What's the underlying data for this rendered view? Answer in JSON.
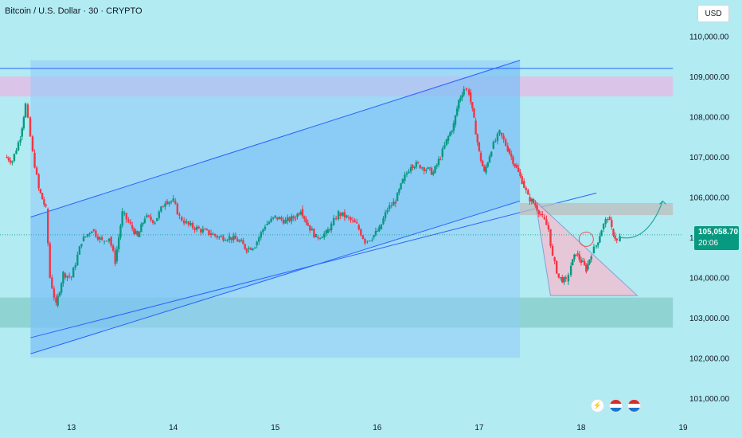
{
  "header": {
    "title": "Bitcoin / U.S. Dollar · 30 · CRYPTO",
    "currency_button": "USD"
  },
  "last_price": {
    "value": "105,058.70",
    "countdown": "20:06",
    "color": "#089981"
  },
  "events": {
    "icons": [
      "lightning-icon",
      "us-flag-icon",
      "us-flag-icon"
    ]
  },
  "chart_data": {
    "type": "candlestick",
    "title": "Bitcoin / U.S. Dollar · 30 · CRYPTO",
    "xlabel": "",
    "ylabel": "",
    "x_ticks": [
      "13",
      "14",
      "15",
      "16",
      "17",
      "18",
      "19"
    ],
    "y_ticks": [
      101000,
      102000,
      103000,
      104000,
      105000,
      106000,
      107000,
      108000,
      109000,
      110000
    ],
    "y_tick_labels": [
      "101,000.00",
      "102,000.00",
      "103,000.00",
      "104,000.00",
      "105,000.00",
      "106,000.00",
      "107,000.00",
      "108,000.00",
      "109,000.00",
      "110,000.00"
    ],
    "xlim": [
      12.3,
      19.0
    ],
    "ylim": [
      100600,
      110900
    ],
    "grid": false,
    "up_color": "#089981",
    "down_color": "#f23645",
    "current_price": 105058.7,
    "close_path": [
      [
        12.35,
        107000
      ],
      [
        12.42,
        106900
      ],
      [
        12.5,
        107500
      ],
      [
        12.55,
        108300
      ],
      [
        12.62,
        107100
      ],
      [
        12.68,
        106200
      ],
      [
        12.75,
        105700
      ],
      [
        12.79,
        104000
      ],
      [
        12.85,
        103300
      ],
      [
        12.92,
        104100
      ],
      [
        13.0,
        104000
      ],
      [
        13.1,
        104900
      ],
      [
        13.2,
        105200
      ],
      [
        13.3,
        104900
      ],
      [
        13.37,
        105000
      ],
      [
        13.43,
        104400
      ],
      [
        13.5,
        105600
      ],
      [
        13.58,
        105300
      ],
      [
        13.65,
        105000
      ],
      [
        13.72,
        105500
      ],
      [
        13.82,
        105400
      ],
      [
        13.92,
        105900
      ],
      [
        14.0,
        105900
      ],
      [
        14.06,
        105500
      ],
      [
        14.15,
        105300
      ],
      [
        14.25,
        105200
      ],
      [
        14.35,
        105100
      ],
      [
        14.45,
        105000
      ],
      [
        14.55,
        105000
      ],
      [
        14.65,
        104900
      ],
      [
        14.72,
        104700
      ],
      [
        14.8,
        104800
      ],
      [
        14.9,
        105300
      ],
      [
        15.0,
        105500
      ],
      [
        15.1,
        105400
      ],
      [
        15.2,
        105500
      ],
      [
        15.25,
        105700
      ],
      [
        15.32,
        105300
      ],
      [
        15.4,
        105000
      ],
      [
        15.5,
        105100
      ],
      [
        15.55,
        105300
      ],
      [
        15.62,
        105600
      ],
      [
        15.7,
        105500
      ],
      [
        15.8,
        105300
      ],
      [
        15.88,
        104900
      ],
      [
        15.95,
        105000
      ],
      [
        16.02,
        105200
      ],
      [
        16.1,
        105700
      ],
      [
        16.18,
        105900
      ],
      [
        16.25,
        106400
      ],
      [
        16.33,
        106800
      ],
      [
        16.4,
        106800
      ],
      [
        16.48,
        106700
      ],
      [
        16.55,
        106600
      ],
      [
        16.62,
        107000
      ],
      [
        16.68,
        107400
      ],
      [
        16.75,
        107800
      ],
      [
        16.8,
        108400
      ],
      [
        16.85,
        108700
      ],
      [
        16.9,
        108600
      ],
      [
        16.95,
        107900
      ],
      [
        17.0,
        107100
      ],
      [
        17.05,
        106600
      ],
      [
        17.12,
        107200
      ],
      [
        17.2,
        107600
      ],
      [
        17.28,
        107200
      ],
      [
        17.35,
        106800
      ],
      [
        17.42,
        106400
      ],
      [
        17.48,
        106000
      ],
      [
        17.55,
        105800
      ],
      [
        17.62,
        105500
      ],
      [
        17.68,
        105200
      ],
      [
        17.72,
        104500
      ],
      [
        17.78,
        104000
      ],
      [
        17.85,
        103900
      ],
      [
        17.9,
        104300
      ],
      [
        17.95,
        104600
      ],
      [
        18.0,
        104400
      ],
      [
        18.05,
        104200
      ],
      [
        18.1,
        104600
      ],
      [
        18.15,
        104800
      ],
      [
        18.2,
        105200
      ],
      [
        18.26,
        105500
      ],
      [
        18.3,
        105200
      ],
      [
        18.35,
        104900
      ],
      [
        18.38,
        105000
      ]
    ],
    "annotations": {
      "resistance_line": 109200,
      "resistance_zone": [
        108500,
        109000
      ],
      "support_zone": [
        102750,
        103500
      ],
      "rectangle": {
        "x": [
          12.3,
          17.4
        ],
        "y": [
          102000,
          109400
        ]
      },
      "ascending_channel_upper": [
        [
          12.3,
          105500
        ],
        [
          17.4,
          109400
        ]
      ],
      "ascending_channel_lower": [
        [
          12.3,
          102100
        ],
        [
          17.4,
          105900
        ]
      ],
      "trendline": [
        [
          12.35,
          102500
        ],
        [
          18.15,
          106100
        ]
      ],
      "target_zone": {
        "x": [
          17.4,
          18.9
        ],
        "y": [
          105550,
          105850
        ]
      },
      "descending_triangle": [
        [
          17.55,
          105900
        ],
        [
          17.7,
          103550
        ],
        [
          18.55,
          103550
        ]
      ],
      "projection_path": [
        [
          18.38,
          105000
        ],
        [
          18.55,
          104900
        ],
        [
          18.7,
          105200
        ],
        [
          18.8,
          105900
        ]
      ],
      "circle_at": [
        18.05,
        104950
      ]
    }
  }
}
